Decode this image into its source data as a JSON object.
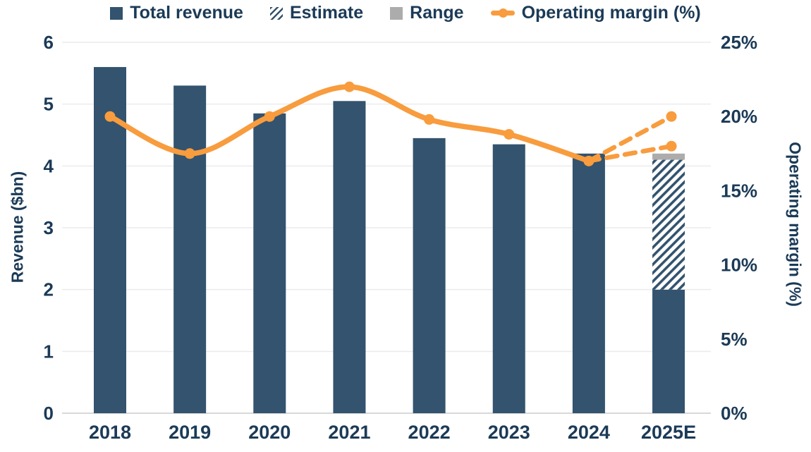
{
  "colors": {
    "bar_navy": "#33536E",
    "orange": "#F89C3E",
    "range_gray": "#ACACAC",
    "text_navy": "#1B3A57",
    "gridline": "#EBEBEB",
    "baseline": "#D8D8D8",
    "background": "#FFFFFF"
  },
  "legend": {
    "items": [
      {
        "label": "Total revenue",
        "swatch": "solid-navy-square"
      },
      {
        "label": "Estimate",
        "swatch": "hatched-square"
      },
      {
        "label": "Range",
        "swatch": "gray-square"
      },
      {
        "label": "Operating margin (%)",
        "swatch": "orange-line-with-dot"
      }
    ]
  },
  "chart_data": {
    "type": "combo-bar-line",
    "categories": [
      "2018",
      "2019",
      "2020",
      "2021",
      "2022",
      "2023",
      "2024",
      "2025E"
    ],
    "series": [
      {
        "name": "Total revenue",
        "type": "bar",
        "axis": "left",
        "values": [
          5.6,
          5.3,
          4.85,
          5.05,
          4.45,
          4.35,
          4.2,
          2.0
        ]
      },
      {
        "name": "Estimate",
        "type": "bar-hatched",
        "axis": "left",
        "category": "2025E",
        "from": 2.0,
        "to": 4.1
      },
      {
        "name": "Range",
        "type": "bar-cap",
        "axis": "left",
        "category": "2025E",
        "from": 4.1,
        "to": 4.2
      },
      {
        "name": "Operating margin (%)",
        "type": "line",
        "axis": "right",
        "values": [
          20,
          17.5,
          20,
          22,
          19.8,
          18.8,
          17,
          null
        ]
      },
      {
        "name": "Operating margin 2025E scenarios",
        "type": "dashed-line",
        "axis": "right",
        "from_category": "2024",
        "from_value": 17,
        "endpoints": [
          {
            "category": "2025E",
            "value": 20
          },
          {
            "category": "2025E",
            "value": 18
          }
        ]
      }
    ],
    "left_axis": {
      "title": "Revenue ($bn)",
      "ticks": [
        0,
        1,
        2,
        3,
        4,
        5,
        6
      ],
      "range": [
        0,
        6
      ]
    },
    "right_axis": {
      "title": "Operating margin (%)",
      "ticks": [
        "0%",
        "5%",
        "10%",
        "15%",
        "20%",
        "25%"
      ],
      "tick_values": [
        0,
        5,
        10,
        15,
        20,
        25
      ],
      "range": [
        0,
        25
      ]
    },
    "grid": true,
    "legend_position": "top"
  }
}
